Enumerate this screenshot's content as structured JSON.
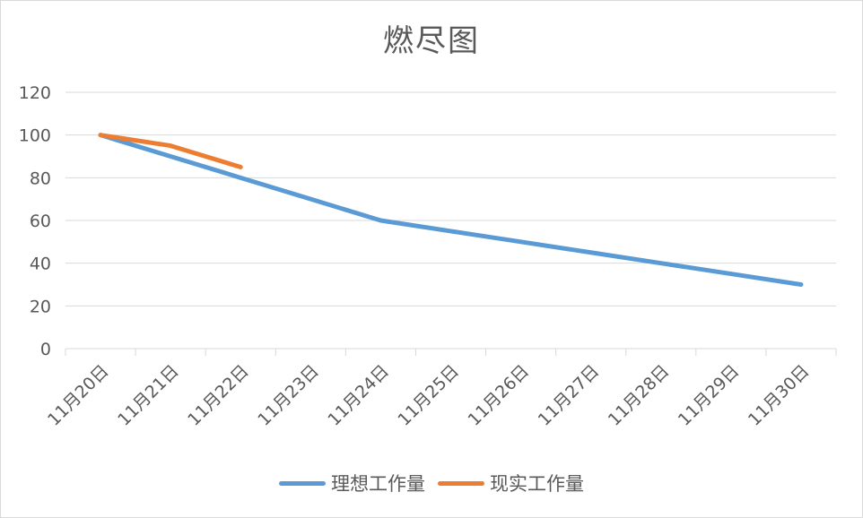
{
  "chart_data": {
    "type": "line",
    "title": "燃尽图",
    "categories": [
      "11月20日",
      "11月21日",
      "11月22日",
      "11月23日",
      "11月24日",
      "11月25日",
      "11月26日",
      "11月27日",
      "11月28日",
      "11月29日",
      "11月30日"
    ],
    "series": [
      {
        "name": "理想工作量",
        "color": "#5b9bd5",
        "values": [
          100,
          90,
          80,
          70,
          60,
          55,
          50,
          45,
          40,
          35,
          30
        ]
      },
      {
        "name": "现实工作量",
        "color": "#ed7d31",
        "values": [
          100,
          95,
          85,
          null,
          null,
          null,
          null,
          null,
          null,
          null,
          null
        ]
      }
    ],
    "ylim": [
      0,
      120
    ],
    "yticks": [
      "0",
      "20",
      "40",
      "60",
      "80",
      "100",
      "120"
    ],
    "grid": true,
    "legend_position": "bottom"
  }
}
